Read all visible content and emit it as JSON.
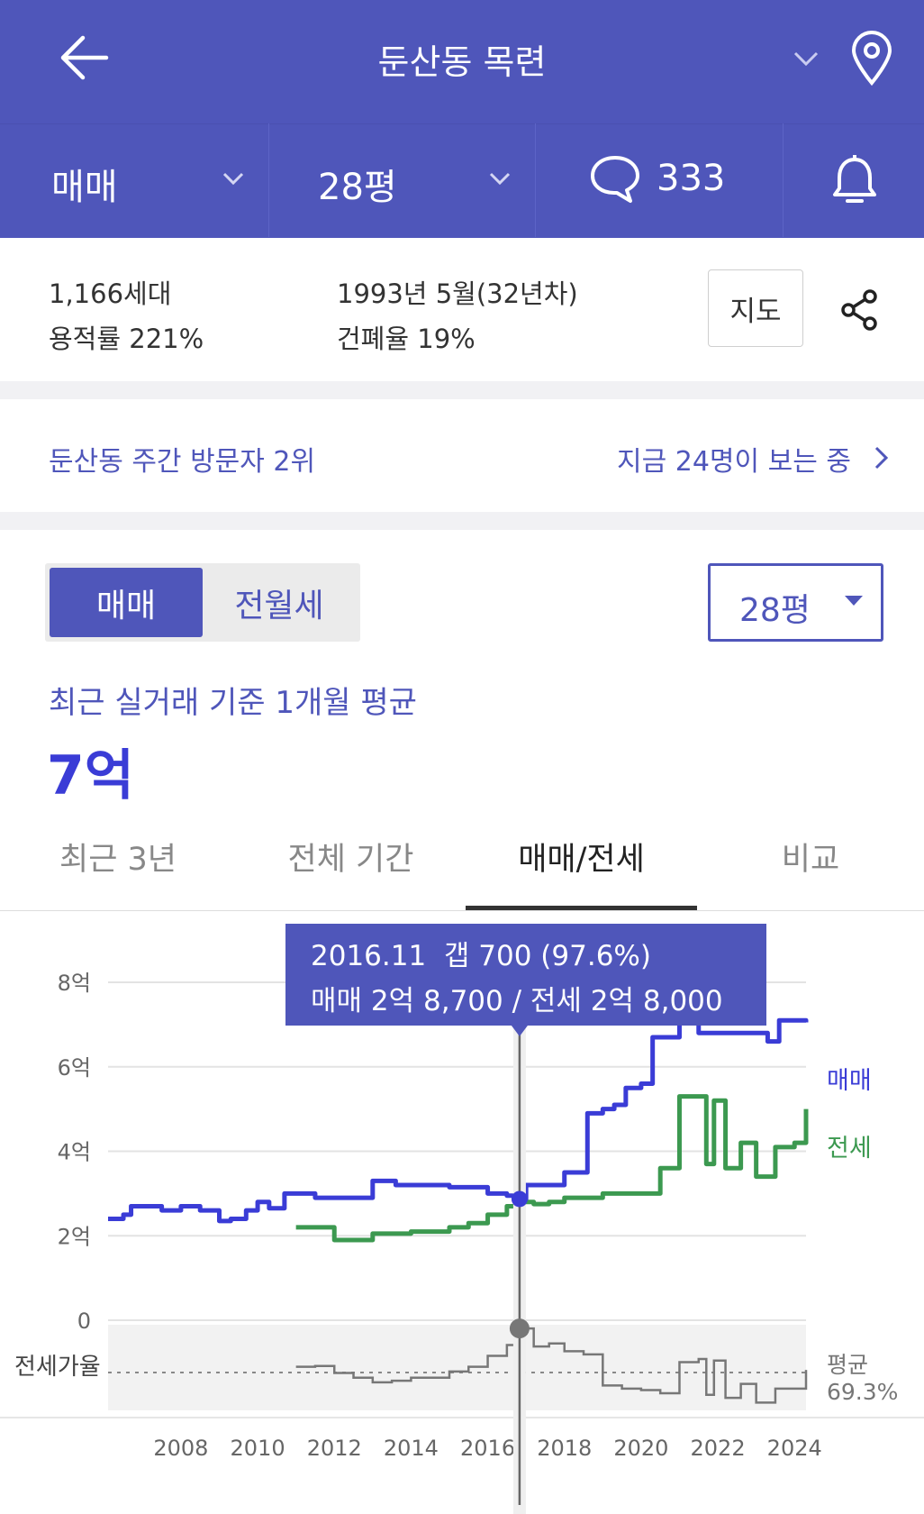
{
  "header": {
    "title": "둔산동 목련"
  },
  "subbar": {
    "trade_type": "매매",
    "size": "28평",
    "comments": "333"
  },
  "info": {
    "households": "1,166세대",
    "floor_area_ratio": "용적률 221%",
    "built": "1993년 5월(32년차)",
    "coverage_ratio": "건폐율 19%",
    "map_button": "지도"
  },
  "visitors": {
    "rank_text": "둔산동 주간 방문자 2위",
    "viewing_text": "지금 24명이 보는 중"
  },
  "toggle": {
    "sale": "매매",
    "rent": "전월세"
  },
  "size_select": "28평",
  "price": {
    "caption": "최근 실거래 기준 1개월 평균",
    "value": "7억"
  },
  "tabs": [
    "최근 3년",
    "전체 기간",
    "매매/전세",
    "비교"
  ],
  "tooltip": {
    "line1": "2016.11  갭 700 (97.6%)",
    "line2": "매매 2억 8,700 / 전세 2억 8,000"
  },
  "colors": {
    "sale": "#3A3CD6",
    "jeonse": "#3C9950",
    "ratio": "#777777",
    "brand": "#4F56BA"
  },
  "chart_data": {
    "type": "line",
    "title": "",
    "xlabel": "",
    "ylabel": "",
    "y_ticks": [
      "0",
      "2억",
      "4억",
      "6억",
      "8억"
    ],
    "ylim": [
      0,
      8
    ],
    "y_unit": "억",
    "x_ticks": [
      "2008",
      "2010",
      "2012",
      "2014",
      "2016",
      "2018",
      "2020",
      "2022",
      "2024"
    ],
    "xlim": [
      2006.1,
      2024.3
    ],
    "series": [
      {
        "name": "매매",
        "x": [
          2006.1,
          2006.5,
          2006.7,
          2007.0,
          2007.5,
          2008.0,
          2008.5,
          2009.0,
          2009.3,
          2009.7,
          2010.0,
          2010.3,
          2010.7,
          2011.0,
          2011.5,
          2012.0,
          2012.5,
          2013.0,
          2013.3,
          2013.6,
          2014.0,
          2014.5,
          2015.0,
          2015.5,
          2016.0,
          2016.5,
          2016.83,
          2017.0,
          2017.5,
          2018.0,
          2018.3,
          2018.6,
          2019.0,
          2019.3,
          2019.6,
          2020.0,
          2020.3,
          2020.6,
          2021.0,
          2021.5,
          2022.0,
          2022.5,
          2023.0,
          2023.3,
          2023.6,
          2024.0,
          2024.3
        ],
        "values": [
          2.4,
          2.5,
          2.7,
          2.7,
          2.6,
          2.7,
          2.6,
          2.35,
          2.4,
          2.6,
          2.8,
          2.65,
          3.0,
          3.0,
          2.9,
          2.9,
          2.9,
          3.3,
          3.3,
          3.2,
          3.2,
          3.2,
          3.15,
          3.15,
          3.0,
          2.95,
          2.87,
          3.2,
          3.2,
          3.5,
          3.5,
          4.9,
          5.0,
          5.1,
          5.5,
          5.6,
          6.7,
          6.7,
          7.1,
          6.8,
          6.8,
          6.8,
          6.8,
          6.6,
          7.1,
          7.1,
          7.05
        ]
      },
      {
        "name": "전세",
        "x": [
          2011.0,
          2011.5,
          2012.0,
          2012.5,
          2013.0,
          2013.5,
          2014.0,
          2014.5,
          2015.0,
          2015.5,
          2016.0,
          2016.5,
          2016.83,
          2017.2,
          2017.6,
          2018.0,
          2018.5,
          2019.0,
          2019.5,
          2020.0,
          2020.5,
          2021.0,
          2021.5,
          2021.7,
          2021.9,
          2022.2,
          2022.6,
          2023.0,
          2023.5,
          2024.0,
          2024.3
        ],
        "values": [
          2.2,
          2.2,
          1.9,
          1.9,
          2.05,
          2.05,
          2.1,
          2.1,
          2.2,
          2.3,
          2.5,
          2.7,
          2.8,
          2.75,
          2.8,
          2.9,
          2.9,
          3.0,
          3.0,
          3.0,
          3.6,
          5.3,
          5.3,
          3.7,
          5.2,
          3.6,
          4.2,
          3.4,
          4.1,
          4.2,
          5.0
        ]
      },
      {
        "name": "전세가율",
        "x": [
          2011.0,
          2011.5,
          2012.0,
          2012.5,
          2013.0,
          2013.5,
          2014.0,
          2014.5,
          2015.0,
          2015.5,
          2016.0,
          2016.5,
          2016.83,
          2017.2,
          2017.6,
          2018.0,
          2018.5,
          2019.0,
          2019.5,
          2020.0,
          2020.5,
          2021.0,
          2021.5,
          2021.7,
          2021.9,
          2022.2,
          2022.6,
          2023.0,
          2023.5,
          2024.0,
          2024.3
        ],
        "values": [
          73.0,
          73.5,
          69.0,
          66.0,
          63.0,
          64.0,
          66.0,
          66.0,
          70.0,
          73.0,
          80.0,
          87.0,
          97.6,
          86.0,
          88.0,
          83.0,
          81.0,
          61.0,
          59.0,
          58.0,
          56.0,
          76.0,
          78.0,
          55.0,
          77.0,
          53.0,
          62.0,
          50.0,
          59.0,
          59.0,
          71.0
        ]
      }
    ],
    "ratio_label": "전세가율",
    "ratio_avg_label": "평균",
    "ratio_avg_value": "69.3%",
    "ratio_avg": 69.3,
    "ratio_range": [
      45,
      100
    ],
    "highlight_x": 2016.83,
    "highlight_sale": 2.87,
    "highlight_ratio": 97.6,
    "legend": [
      "매매",
      "전세"
    ]
  }
}
